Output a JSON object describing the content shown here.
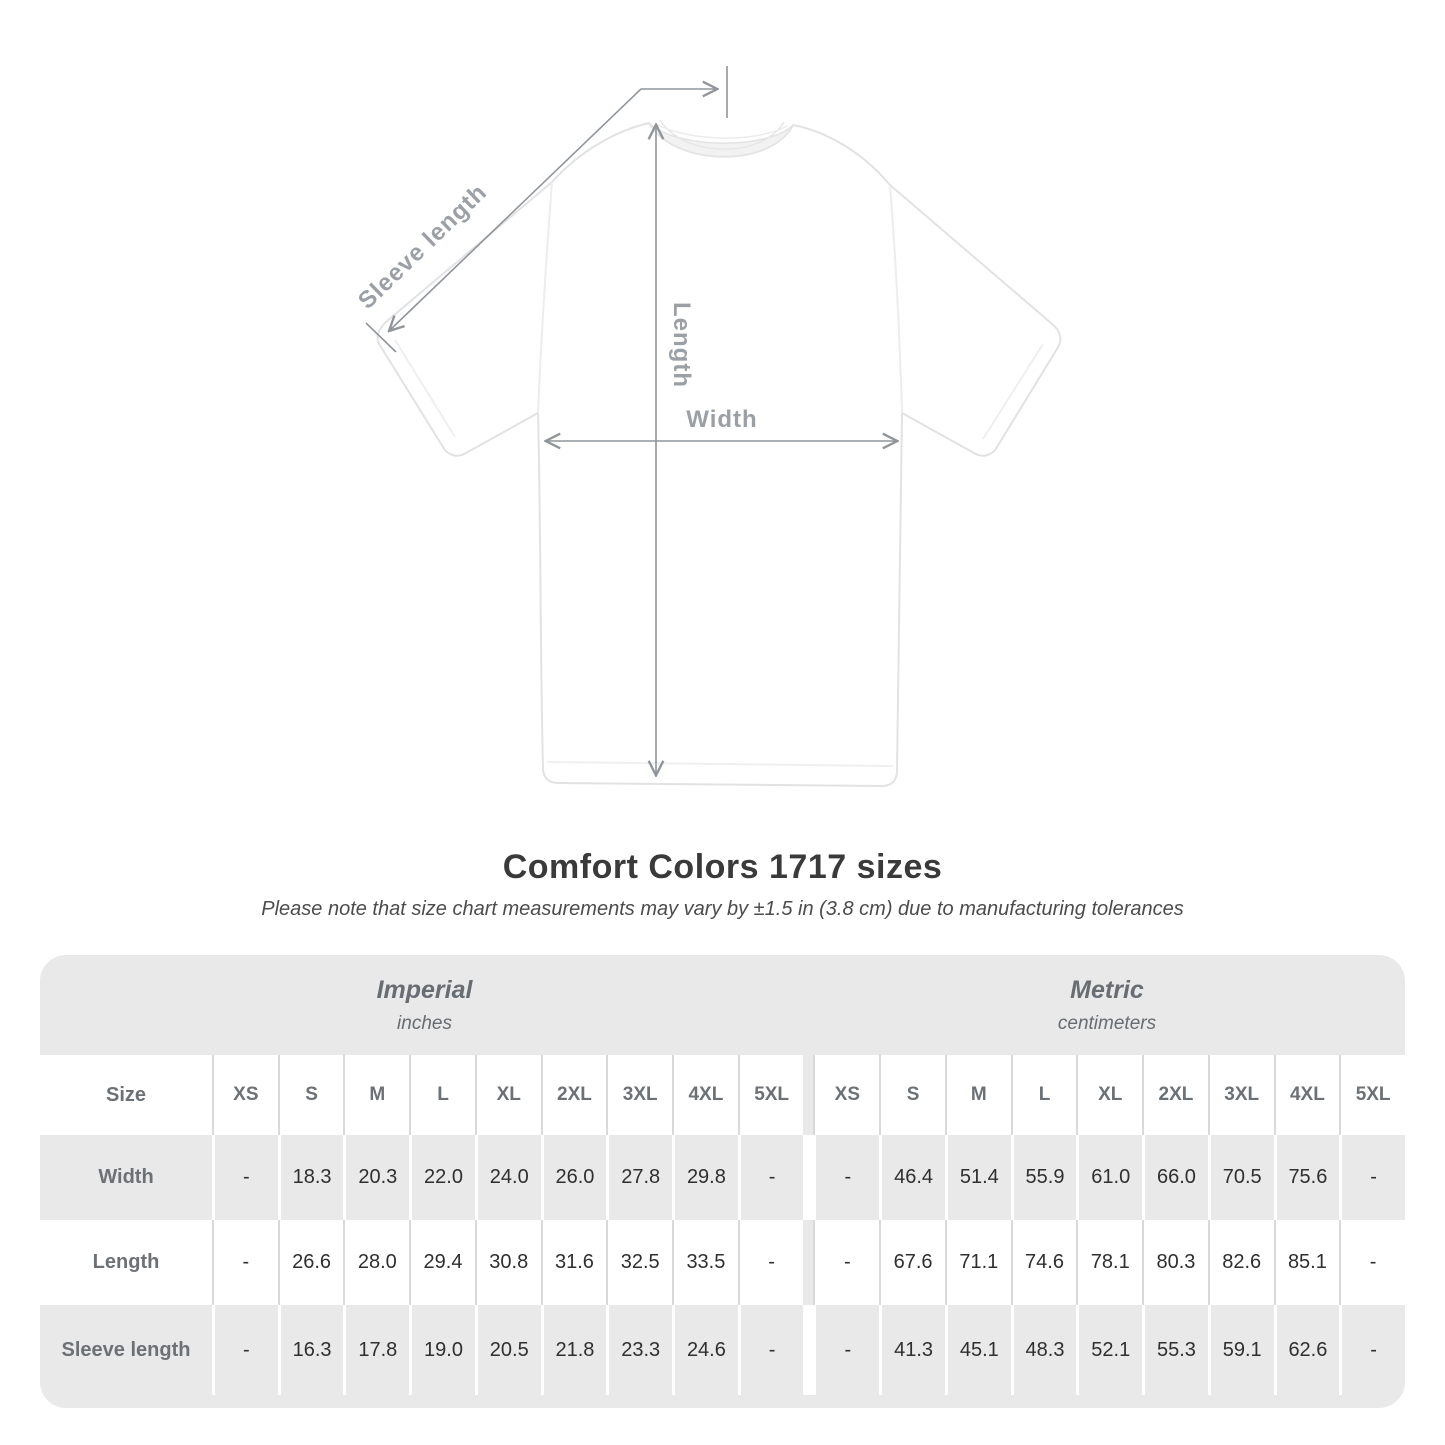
{
  "diagram": {
    "sleeve_length_label": "Sleeve length",
    "length_label": "Length",
    "width_label": "Width"
  },
  "title": "Comfort Colors 1717 sizes",
  "subtitle": "Please note that size chart measurements may vary by ±1.5 in (3.8 cm) due to manufacturing tolerances",
  "table": {
    "sections": [
      {
        "name": "Imperial",
        "unit": "inches"
      },
      {
        "name": "Metric",
        "unit": "centimeters"
      }
    ],
    "size_header": "Size",
    "sizes": [
      "XS",
      "S",
      "M",
      "L",
      "XL",
      "2XL",
      "3XL",
      "4XL",
      "5XL"
    ],
    "rows": [
      {
        "label": "Width",
        "imperial": [
          "-",
          "18.3",
          "20.3",
          "22.0",
          "24.0",
          "26.0",
          "27.8",
          "29.8",
          "-"
        ],
        "metric": [
          "-",
          "46.4",
          "51.4",
          "55.9",
          "61.0",
          "66.0",
          "70.5",
          "75.6",
          "-"
        ]
      },
      {
        "label": "Length",
        "imperial": [
          "-",
          "26.6",
          "28.0",
          "29.4",
          "30.8",
          "31.6",
          "32.5",
          "33.5",
          "-"
        ],
        "metric": [
          "-",
          "67.6",
          "71.1",
          "74.6",
          "78.1",
          "80.3",
          "82.6",
          "85.1",
          "-"
        ]
      },
      {
        "label": "Sleeve length",
        "imperial": [
          "-",
          "16.3",
          "17.8",
          "19.0",
          "20.5",
          "21.8",
          "23.3",
          "24.6",
          "-"
        ],
        "metric": [
          "-",
          "41.3",
          "45.1",
          "48.3",
          "52.1",
          "55.3",
          "59.1",
          "62.6",
          "-"
        ]
      }
    ]
  },
  "colors": {
    "table_background": "#e9e9e9",
    "row_white": "#ffffff",
    "separator_on_white": "#d9d9d9",
    "separator_on_gray": "#ffffff",
    "header_text": "#6c7176",
    "value_text": "#2f2f2f",
    "title_text": "#3a3a3a",
    "arrow": "#8f959b",
    "measure_label": "#9aa0a6",
    "shirt_outline": "#e2e2e2"
  }
}
